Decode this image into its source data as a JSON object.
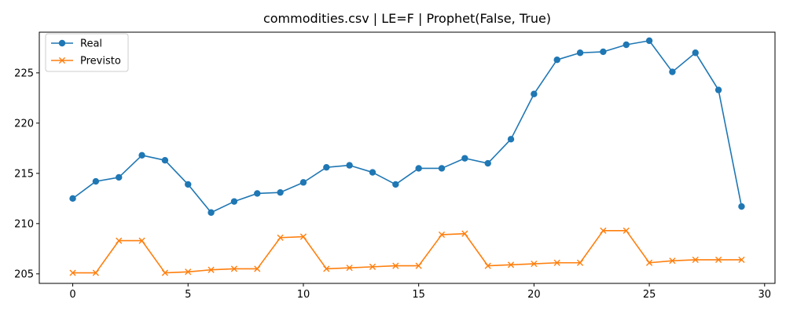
{
  "chart_data": {
    "type": "line",
    "title": "commodities.csv | LE=F | Prophet(False, True)",
    "xlabel": "",
    "ylabel": "",
    "xlim": [
      -1.45,
      30.45
    ],
    "ylim": [
      204.05,
      229.05
    ],
    "xticks": [
      0,
      5,
      10,
      15,
      20,
      25,
      30
    ],
    "yticks": [
      205,
      210,
      215,
      220,
      225
    ],
    "grid": false,
    "legend_position": "top-left",
    "x": [
      0,
      1,
      2,
      3,
      4,
      5,
      6,
      7,
      8,
      9,
      10,
      11,
      12,
      13,
      14,
      15,
      16,
      17,
      18,
      19,
      20,
      21,
      22,
      23,
      24,
      25,
      26,
      27,
      28,
      29
    ],
    "series": [
      {
        "name": "Real",
        "color": "#1f77b4",
        "marker": "circle",
        "values": [
          212.5,
          214.2,
          214.6,
          216.8,
          216.3,
          213.9,
          211.1,
          212.2,
          213.0,
          213.1,
          214.1,
          215.6,
          215.8,
          215.1,
          213.9,
          215.5,
          215.5,
          216.5,
          216.0,
          218.4,
          222.9,
          226.3,
          227.0,
          227.1,
          227.8,
          228.2,
          225.1,
          227.0,
          223.3,
          211.7
        ]
      },
      {
        "name": "Previsto",
        "color": "#ff7f0e",
        "marker": "x",
        "values": [
          205.1,
          205.1,
          208.3,
          208.3,
          205.1,
          205.2,
          205.4,
          205.5,
          205.5,
          208.6,
          208.7,
          205.5,
          205.6,
          205.7,
          205.8,
          205.8,
          208.9,
          209.0,
          205.8,
          205.9,
          206.0,
          206.1,
          206.1,
          209.3,
          209.3,
          206.1,
          206.3,
          206.4,
          206.4,
          206.4
        ]
      }
    ]
  }
}
